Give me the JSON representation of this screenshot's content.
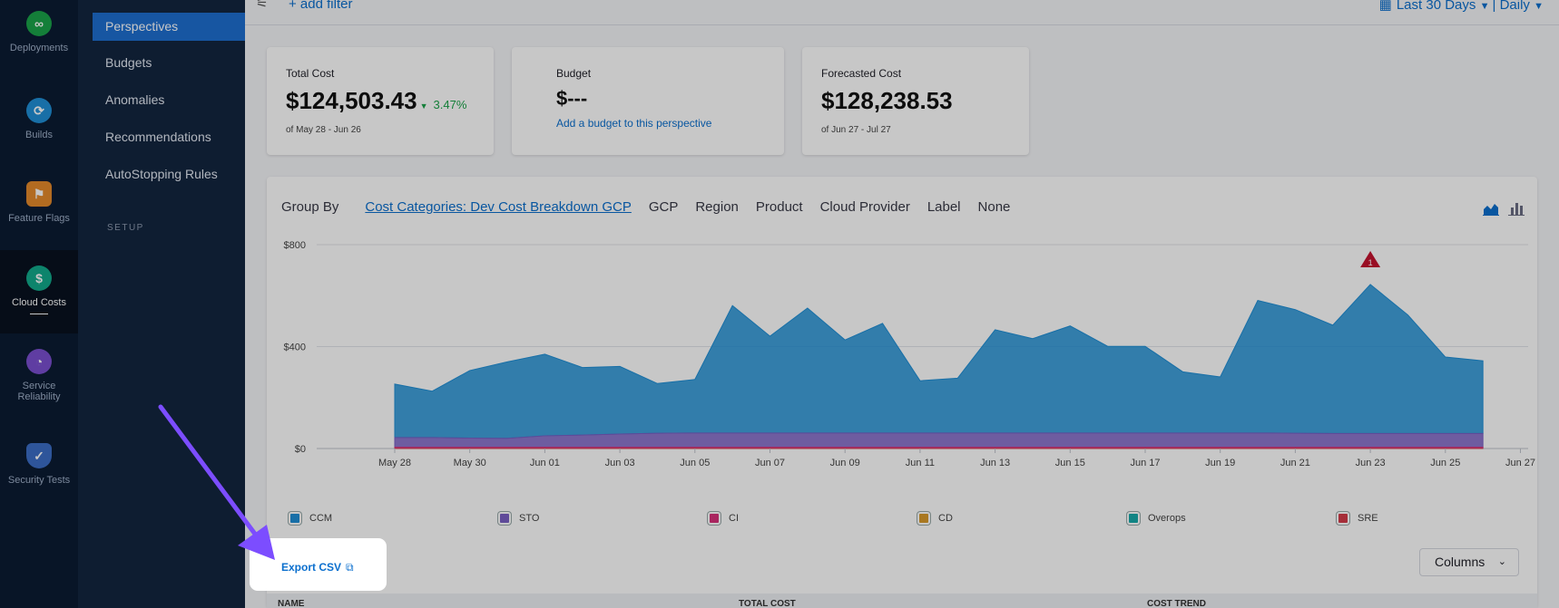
{
  "rail": {
    "items": [
      {
        "label": "Deployments",
        "icon": "deployments-icon",
        "color": "#1aa34a"
      },
      {
        "label": "Builds",
        "icon": "builds-icon",
        "color": "#1f8fd6"
      },
      {
        "label": "Feature Flags",
        "icon": "feature-flags-icon",
        "color": "#e58a2b"
      },
      {
        "label": "Cloud Costs",
        "icon": "cloud-costs-icon",
        "color": "#11a98b"
      },
      {
        "label": "Service Reliability",
        "icon": "service-reliability-icon",
        "color": "#7a4fd0"
      },
      {
        "label": "Security Tests",
        "icon": "security-tests-icon",
        "color": "#3b6ec6"
      }
    ]
  },
  "subnav": {
    "items": [
      "Perspectives",
      "Budgets",
      "Anomalies",
      "Recommendations",
      "AutoStopping Rules"
    ],
    "setup_label": "SETUP"
  },
  "topbar": {
    "add_filter": "+ add filter",
    "range_label": "Last 30 Days",
    "separator": "|",
    "granularity_label": "Daily"
  },
  "cards": {
    "total": {
      "label": "Total Cost",
      "value": "$124,503.43",
      "change": "3.47%",
      "period": "of May 28 - Jun 26"
    },
    "budget": {
      "label": "Budget",
      "value": "$---",
      "link": "Add a budget to this perspective"
    },
    "forecast": {
      "label": "Forecasted Cost",
      "value": "$128,238.53",
      "period": "of Jun 27 - Jul 27"
    }
  },
  "group_by": {
    "label": "Group By",
    "options": [
      "Cost Categories: Dev Cost Breakdown GCP",
      "GCP",
      "Region",
      "Product",
      "Cloud Provider",
      "Label",
      "None"
    ],
    "selected_index": 0
  },
  "chart_data": {
    "type": "area",
    "x": [
      "May 28",
      "May 29",
      "May 30",
      "May 31",
      "Jun 01",
      "Jun 02",
      "Jun 03",
      "Jun 04",
      "Jun 05",
      "Jun 06",
      "Jun 07",
      "Jun 08",
      "Jun 09",
      "Jun 10",
      "Jun 11",
      "Jun 12",
      "Jun 13",
      "Jun 14",
      "Jun 15",
      "Jun 16",
      "Jun 17",
      "Jun 18",
      "Jun 19",
      "Jun 20",
      "Jun 21",
      "Jun 22",
      "Jun 23",
      "Jun 24",
      "Jun 25",
      "Jun 26"
    ],
    "x_ticks": [
      "May 28",
      "May 30",
      "Jun 01",
      "Jun 03",
      "Jun 05",
      "Jun 07",
      "Jun 09",
      "Jun 11",
      "Jun 13",
      "Jun 15",
      "Jun 17",
      "Jun 19",
      "Jun 21",
      "Jun 23",
      "Jun 25",
      "Jun 27"
    ],
    "y_ticks": [
      "$0",
      "$400",
      "$800"
    ],
    "ylim": [
      0,
      800
    ],
    "series": [
      {
        "name": "CCM",
        "color": "#1f8fd6",
        "values": [
          210,
          182,
          265,
          300,
          320,
          265,
          265,
          195,
          210,
          500,
          380,
          490,
          365,
          430,
          205,
          215,
          405,
          370,
          420,
          340,
          340,
          240,
          220,
          520,
          485,
          425,
          585,
          465,
          300,
          285
        ]
      },
      {
        "name": "STO",
        "color": "#7a5fc4",
        "values": [
          38,
          38,
          36,
          35,
          45,
          48,
          52,
          55,
          56,
          56,
          56,
          56,
          56,
          56,
          56,
          56,
          56,
          56,
          56,
          56,
          56,
          56,
          56,
          56,
          55,
          54,
          54,
          54,
          54,
          54
        ]
      },
      {
        "name": "CI",
        "color": "#d9307a",
        "values": [
          5,
          5,
          5,
          5,
          5,
          5,
          5,
          5,
          5,
          5,
          5,
          5,
          5,
          5,
          5,
          5,
          5,
          5,
          5,
          5,
          5,
          5,
          5,
          5,
          5,
          5,
          5,
          5,
          5,
          5
        ]
      },
      {
        "name": "CD",
        "color": "#d99a2b",
        "values": [
          0,
          0,
          0,
          0,
          0,
          0,
          0,
          0,
          0,
          0,
          0,
          0,
          0,
          0,
          0,
          0,
          0,
          0,
          0,
          0,
          0,
          0,
          0,
          0,
          0,
          0,
          0,
          0,
          0,
          0
        ]
      },
      {
        "name": "Overops",
        "color": "#17a9a9",
        "values": [
          0,
          0,
          0,
          0,
          0,
          0,
          0,
          0,
          0,
          0,
          0,
          0,
          0,
          0,
          0,
          0,
          0,
          0,
          0,
          0,
          0,
          0,
          0,
          0,
          0,
          0,
          0,
          0,
          0,
          0
        ]
      },
      {
        "name": "SRE",
        "color": "#d43b4a",
        "values": [
          0,
          0,
          0,
          0,
          0,
          0,
          0,
          0,
          0,
          0,
          0,
          0,
          0,
          0,
          0,
          0,
          0,
          0,
          0,
          0,
          0,
          0,
          0,
          0,
          0,
          0,
          0,
          0,
          0,
          0
        ]
      }
    ],
    "annotations": [
      {
        "x": "Jun 23",
        "label": "1",
        "type": "anomaly"
      }
    ]
  },
  "actions": {
    "export": "Export CSV",
    "columns": "Columns"
  },
  "table": {
    "headers": [
      "NAME",
      "TOTAL COST",
      "COST TREND"
    ]
  }
}
